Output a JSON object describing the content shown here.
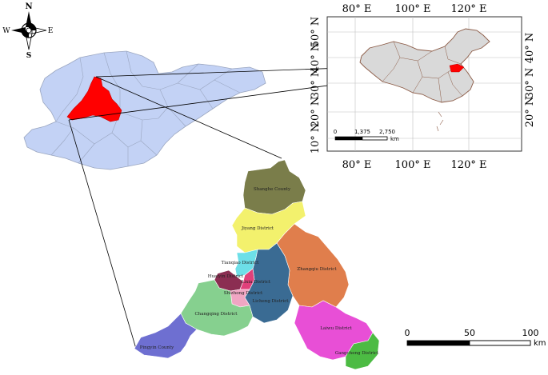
{
  "compass": {
    "n": "N",
    "s": "S",
    "e": "E",
    "w": "W"
  },
  "inset": {
    "top_labels": [
      "80° E",
      "100° E",
      "120° E"
    ],
    "bottom_labels": [
      "80° E",
      "100° E",
      "120° E"
    ],
    "left_labels": [
      "50° N",
      "40° N",
      "30° N",
      "20° N",
      "10° N"
    ],
    "right_labels": [
      "40° N",
      "30° N",
      "20° N"
    ],
    "scale": {
      "ticks": [
        "0",
        "1,375",
        "2,750"
      ],
      "unit": "km"
    }
  },
  "districts": [
    {
      "name": "Shanghe County",
      "color": "#7a7d4a"
    },
    {
      "name": "Jiyang District",
      "color": "#f3f16d"
    },
    {
      "name": "Tianqiao District",
      "color": "#6ddfe8"
    },
    {
      "name": "Huaiyin District",
      "color": "#8b2e52"
    },
    {
      "name": "Lixia District",
      "color": "#e0407a"
    },
    {
      "name": "Shizhong District",
      "color": "#f0a6c3"
    },
    {
      "name": "Licheng District",
      "color": "#3a6b93"
    },
    {
      "name": "Zhangqiu District",
      "color": "#e07e4c"
    },
    {
      "name": "Changqing District",
      "color": "#86d08f"
    },
    {
      "name": "Pingyin County",
      "color": "#6e6fd1"
    },
    {
      "name": "Laiwu District",
      "color": "#e84fd6"
    },
    {
      "name": "Gangcheng District",
      "color": "#4cbb43"
    }
  ],
  "scale_main": {
    "ticks": [
      "0",
      "50",
      "100"
    ],
    "unit": "km"
  },
  "colors": {
    "province": "#c3d2f5",
    "province_border": "#9aa6c0",
    "highlight": "#ff0000",
    "china": "#d9d9d9",
    "china_border": "#8b5a45"
  }
}
